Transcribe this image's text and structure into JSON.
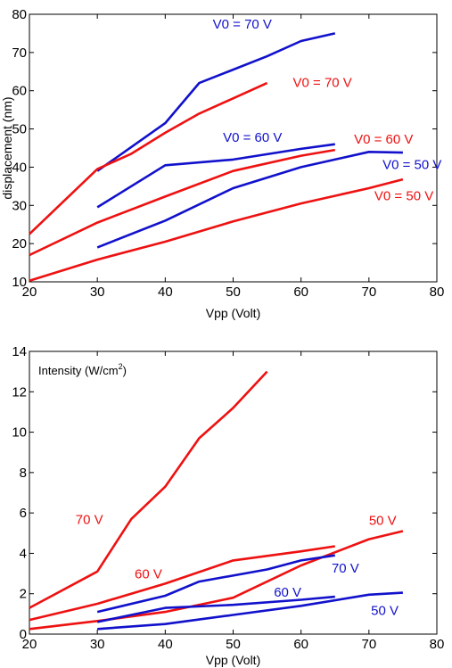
{
  "colors": {
    "red": "#ee1111",
    "blue": "#1111cc",
    "axis": "#000000"
  },
  "chart_data": [
    {
      "type": "line",
      "title": "",
      "xlabel": "Vpp (Volt)",
      "ylabel": "displacement (nm)",
      "xlim": [
        20,
        80
      ],
      "ylim": [
        10,
        80
      ],
      "xticks": [
        20,
        30,
        40,
        50,
        60,
        70,
        80
      ],
      "yticks": [
        10,
        20,
        30,
        40,
        50,
        60,
        70,
        80
      ],
      "grid": false,
      "legend": "none",
      "series": [
        {
          "name": "V0 = 70 V",
          "color": "blue",
          "x": [
            30,
            40,
            45,
            55,
            60,
            65
          ],
          "y": [
            39,
            51.5,
            62,
            69,
            73,
            75
          ]
        },
        {
          "name": "V0 = 70 V",
          "color": "red",
          "x": [
            20,
            30,
            35,
            40,
            45,
            50,
            55
          ],
          "y": [
            22.5,
            39.5,
            43.5,
            49,
            54,
            58,
            62
          ]
        },
        {
          "name": "V0 = 60 V",
          "color": "blue",
          "x": [
            30,
            40,
            50,
            60,
            65
          ],
          "y": [
            29.5,
            40.5,
            42,
            44.8,
            46
          ]
        },
        {
          "name": "V0 = 60 V",
          "color": "red",
          "x": [
            20,
            30,
            40,
            50,
            60,
            65
          ],
          "y": [
            17,
            25.5,
            32.3,
            39,
            43,
            44.5
          ]
        },
        {
          "name": "V0 = 50 V",
          "color": "blue",
          "x": [
            30,
            40,
            50,
            60,
            70,
            75
          ],
          "y": [
            19,
            26,
            34.5,
            40,
            44,
            43.8
          ]
        },
        {
          "name": "V0 = 50 V",
          "color": "red",
          "x": [
            20,
            30,
            40,
            50,
            60,
            70,
            75
          ],
          "y": [
            10.3,
            15.8,
            20.5,
            25.8,
            30.5,
            34.5,
            36.8
          ]
        }
      ],
      "annotations": [
        {
          "text": "V0 = 70 V",
          "color": "blue",
          "x": 47,
          "y": 76.3
        },
        {
          "text": "V0 = 70 V",
          "color": "red",
          "x": 58.8,
          "y": 61
        },
        {
          "text": "V0 = 60 V",
          "color": "blue",
          "x": 48.5,
          "y": 46.6
        },
        {
          "text": "V0 = 60 V",
          "color": "red",
          "x": 67.8,
          "y": 46.2
        },
        {
          "text": "V0 = 50 V",
          "color": "blue",
          "x": 72,
          "y": 39.5
        },
        {
          "text": "V0 = 50 V",
          "color": "red",
          "x": 70.8,
          "y": 31.3
        }
      ]
    },
    {
      "type": "line",
      "title": "",
      "xlabel": "Vpp (Volt)",
      "ylabel": "",
      "inner_label": {
        "text": "Intensity (W/cm",
        "superscript": "2",
        "suffix": ")"
      },
      "xlim": [
        20,
        80
      ],
      "ylim": [
        0,
        14
      ],
      "xticks": [
        20,
        30,
        40,
        50,
        60,
        70,
        80
      ],
      "yticks": [
        0,
        2,
        4,
        6,
        8,
        10,
        12,
        14
      ],
      "grid": false,
      "legend": "none",
      "series": [
        {
          "name": "70 V",
          "color": "red",
          "x": [
            20,
            30,
            35,
            40,
            45,
            50,
            55
          ],
          "y": [
            1.3,
            3.1,
            5.7,
            7.3,
            9.7,
            11.2,
            13
          ]
        },
        {
          "name": "60 V",
          "color": "red",
          "x": [
            20,
            30,
            40,
            50,
            60,
            65
          ],
          "y": [
            0.7,
            1.5,
            2.5,
            3.65,
            4.1,
            4.35
          ]
        },
        {
          "name": "50 V",
          "color": "red",
          "x": [
            20,
            30,
            40,
            50,
            60,
            70,
            75
          ],
          "y": [
            0.25,
            0.65,
            1.1,
            1.8,
            3.4,
            4.7,
            5.1
          ]
        },
        {
          "name": "70 V",
          "color": "blue",
          "x": [
            30,
            40,
            45,
            55,
            60,
            65
          ],
          "y": [
            1.1,
            1.9,
            2.6,
            3.2,
            3.65,
            3.9
          ]
        },
        {
          "name": "60 V",
          "color": "blue",
          "x": [
            30,
            40,
            50,
            60,
            65
          ],
          "y": [
            0.6,
            1.3,
            1.45,
            1.7,
            1.85
          ]
        },
        {
          "name": "50 V",
          "color": "blue",
          "x": [
            30,
            40,
            50,
            60,
            70,
            75
          ],
          "y": [
            0.25,
            0.5,
            0.95,
            1.4,
            1.95,
            2.05
          ]
        }
      ],
      "annotations": [
        {
          "text": "70 V",
          "color": "red",
          "x": 26.8,
          "y": 5.45
        },
        {
          "text": "60 V",
          "color": "red",
          "x": 35.5,
          "y": 2.75
        },
        {
          "text": "50 V",
          "color": "red",
          "x": 70,
          "y": 5.4
        },
        {
          "text": "70 V",
          "color": "blue",
          "x": 64.5,
          "y": 3.05
        },
        {
          "text": "60 V",
          "color": "blue",
          "x": 56,
          "y": 1.85
        },
        {
          "text": "50 V",
          "color": "blue",
          "x": 70.3,
          "y": 0.95
        }
      ]
    }
  ]
}
